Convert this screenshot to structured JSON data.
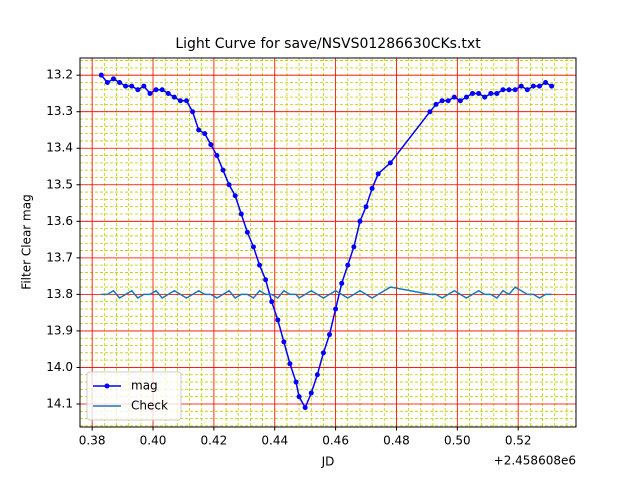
{
  "chart_data": {
    "type": "line",
    "title": "Light Curve for save/NSVS01286630CKs.txt",
    "xlabel": "JD",
    "ylabel": "Filter Clear mag",
    "x_offset_label": "+2.458608e6",
    "x": [
      0.383,
      0.385,
      0.387,
      0.389,
      0.391,
      0.393,
      0.395,
      0.397,
      0.399,
      0.401,
      0.403,
      0.405,
      0.407,
      0.409,
      0.411,
      0.413,
      0.415,
      0.417,
      0.419,
      0.421,
      0.423,
      0.425,
      0.427,
      0.429,
      0.431,
      0.433,
      0.435,
      0.437,
      0.439,
      0.441,
      0.443,
      0.445,
      0.447,
      0.448,
      0.45,
      0.452,
      0.454,
      0.456,
      0.458,
      0.46,
      0.462,
      0.464,
      0.466,
      0.468,
      0.47,
      0.472,
      0.474,
      0.478,
      0.491,
      0.493,
      0.495,
      0.497,
      0.499,
      0.501,
      0.503,
      0.505,
      0.507,
      0.509,
      0.511,
      0.513,
      0.515,
      0.517,
      0.519,
      0.521,
      0.523,
      0.525,
      0.527,
      0.529,
      0.531
    ],
    "series": [
      {
        "name": "mag",
        "color": "#0000ff",
        "marker": true,
        "values": [
          13.2,
          13.22,
          13.21,
          13.22,
          13.23,
          13.23,
          13.24,
          13.23,
          13.25,
          13.24,
          13.24,
          13.25,
          13.26,
          13.27,
          13.27,
          13.3,
          13.35,
          13.36,
          13.39,
          13.42,
          13.46,
          13.5,
          13.53,
          13.58,
          13.63,
          13.67,
          13.72,
          13.76,
          13.82,
          13.87,
          13.93,
          13.99,
          14.04,
          14.08,
          14.11,
          14.07,
          14.02,
          13.96,
          13.91,
          13.84,
          13.77,
          13.72,
          13.67,
          13.6,
          13.56,
          13.51,
          13.47,
          13.44,
          13.3,
          13.28,
          13.27,
          13.27,
          13.26,
          13.27,
          13.26,
          13.25,
          13.25,
          13.26,
          13.25,
          13.25,
          13.24,
          13.24,
          13.24,
          13.23,
          13.24,
          13.23,
          13.23,
          13.22,
          13.23
        ]
      },
      {
        "name": "Check",
        "color": "#1f77b4",
        "marker": false,
        "values": [
          13.8,
          13.8,
          13.79,
          13.81,
          13.8,
          13.79,
          13.81,
          13.8,
          13.8,
          13.79,
          13.81,
          13.8,
          13.79,
          13.8,
          13.81,
          13.8,
          13.79,
          13.8,
          13.8,
          13.81,
          13.8,
          13.79,
          13.81,
          13.8,
          13.8,
          13.81,
          13.79,
          13.8,
          13.8,
          13.81,
          13.79,
          13.8,
          13.8,
          13.81,
          13.8,
          13.79,
          13.8,
          13.81,
          13.8,
          13.79,
          13.8,
          13.81,
          13.8,
          13.79,
          13.8,
          13.81,
          13.8,
          13.78,
          13.8,
          13.8,
          13.81,
          13.8,
          13.79,
          13.8,
          13.81,
          13.8,
          13.79,
          13.8,
          13.8,
          13.81,
          13.79,
          13.8,
          13.78,
          13.79,
          13.8,
          13.8,
          13.81,
          13.8,
          13.8
        ]
      }
    ],
    "xlim": [
      0.376,
      0.539
    ],
    "xticks": [
      0.38,
      {
        "value": 0.4,
        "label": "0.40"
      },
      0.42,
      0.44,
      0.46,
      0.48,
      {
        "value": 0.5,
        "label": "0.50"
      },
      0.52
    ],
    "ylim": [
      14.163,
      13.153
    ],
    "yticks": [
      13.2,
      13.3,
      13.4,
      13.5,
      13.6,
      13.7,
      13.8,
      13.9,
      {
        "value": 14,
        "label": "14.0"
      },
      14.1
    ],
    "grid": true,
    "grid_color": "#ff0000",
    "minor_grid": true,
    "minor_grid_color": "#c8c800",
    "x_minor_step": 0.004,
    "y_minor_step": 0.02,
    "legend": "lower left"
  }
}
